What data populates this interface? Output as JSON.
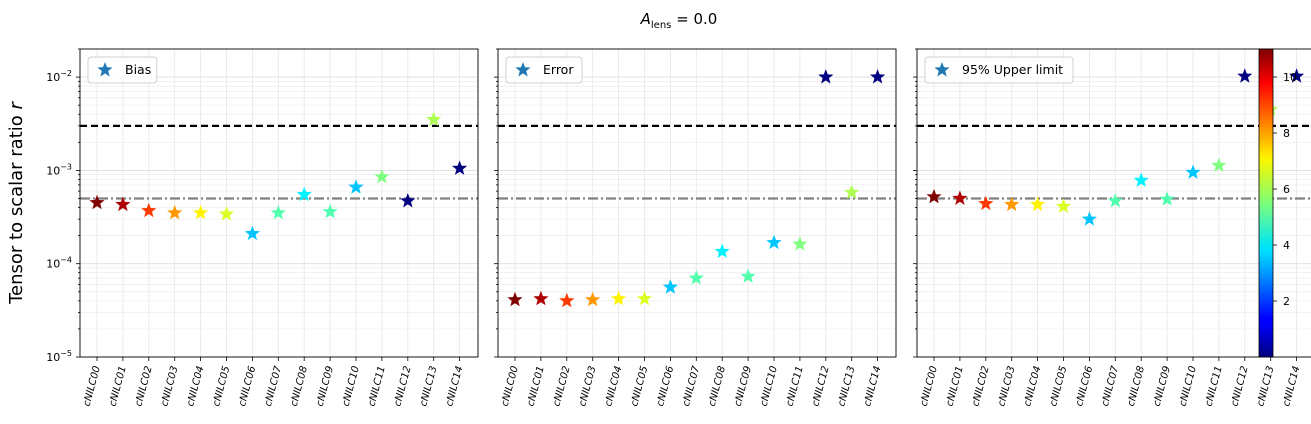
{
  "figure": {
    "title_main": "A",
    "title_sub": "lens",
    "title_rest": " = 0.0",
    "ylabel": "Tensor to scalar ratio ",
    "ylabel_var": "r"
  },
  "chart_data": {
    "type": "scatter",
    "yscale": "log",
    "ylim": [
      1e-05,
      0.02
    ],
    "yticks": [
      {
        "value": 1e-05,
        "base": "10",
        "exp": "−5"
      },
      {
        "value": 0.0001,
        "base": "10",
        "exp": "−4"
      },
      {
        "value": 0.001,
        "base": "10",
        "exp": "−3"
      },
      {
        "value": 0.01,
        "base": "10",
        "exp": "−2"
      }
    ],
    "categories": [
      "cNILC00",
      "cNILC01",
      "cNILC02",
      "cNILC03",
      "cNILC04",
      "cNILC05",
      "cNILC06",
      "cNILC07",
      "cNILC08",
      "cNILC09",
      "cNILC10",
      "cNILC11",
      "cNILC12",
      "cNILC13",
      "cNILC14"
    ],
    "color_values": [
      11,
      10.5,
      9,
      8,
      7,
      6.5,
      3.5,
      5,
      4,
      5,
      3.5,
      5.5,
      0,
      6,
      0
    ],
    "hlines": [
      {
        "y": 0.003,
        "color": "#000000",
        "style": "dashed"
      },
      {
        "y": 0.0005,
        "color": "#808080",
        "style": "dashdot"
      }
    ],
    "panels": [
      {
        "legend": "Bias",
        "values": [
          0.00045,
          0.00043,
          0.00037,
          0.00035,
          0.00035,
          0.00034,
          0.00021,
          0.00035,
          0.00055,
          0.00036,
          0.00066,
          0.00085,
          0.00047,
          0.0035,
          0.00105
        ]
      },
      {
        "legend": "Error",
        "values": [
          4.1e-05,
          4.2e-05,
          4e-05,
          4.1e-05,
          4.2e-05,
          4.2e-05,
          5.6e-05,
          7e-05,
          0.000135,
          7.3e-05,
          0.000168,
          0.000162,
          0.01,
          0.00058,
          0.01
        ]
      },
      {
        "legend": "95% Upper limit",
        "values": [
          0.00052,
          0.0005,
          0.00044,
          0.00043,
          0.00043,
          0.00041,
          0.0003,
          0.00047,
          0.00078,
          0.00049,
          0.00095,
          0.00113,
          0.0102,
          0.0045,
          0.0102
        ]
      }
    ],
    "colorbar": {
      "min": 0,
      "max": 11,
      "colormap": "jet",
      "ticks": [
        {
          "value": 2,
          "label": "2"
        },
        {
          "value": 4,
          "label": "4"
        },
        {
          "value": 6,
          "label": "6"
        },
        {
          "value": 8,
          "label": "8"
        },
        {
          "value": 10,
          "label": "10"
        }
      ]
    },
    "legend_marker_color": "#1f77b4",
    "grid": true,
    "legend_position": "upper left"
  }
}
